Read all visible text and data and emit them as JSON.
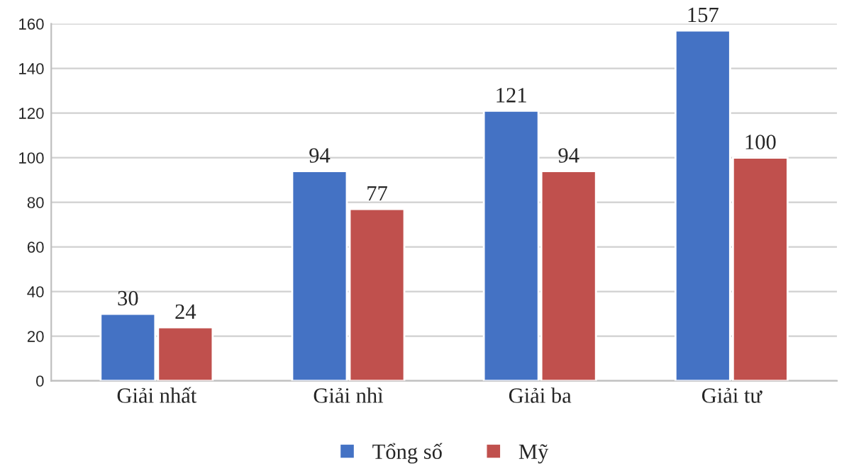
{
  "chart_data": {
    "type": "bar",
    "categories": [
      "Giải nhất",
      "Giải nhì",
      "Giải ba",
      "Giải tư"
    ],
    "series": [
      {
        "name": "Tổng số",
        "color": "#4472c4",
        "values": [
          30,
          94,
          121,
          157
        ]
      },
      {
        "name": "Mỹ",
        "color": "#c0504d",
        "values": [
          24,
          77,
          94,
          100
        ]
      }
    ],
    "ylim": [
      0,
      160
    ],
    "yticks": [
      0,
      20,
      40,
      60,
      80,
      100,
      120,
      140,
      160
    ],
    "grid": "y",
    "legend": "bottom",
    "data_labels": true
  }
}
